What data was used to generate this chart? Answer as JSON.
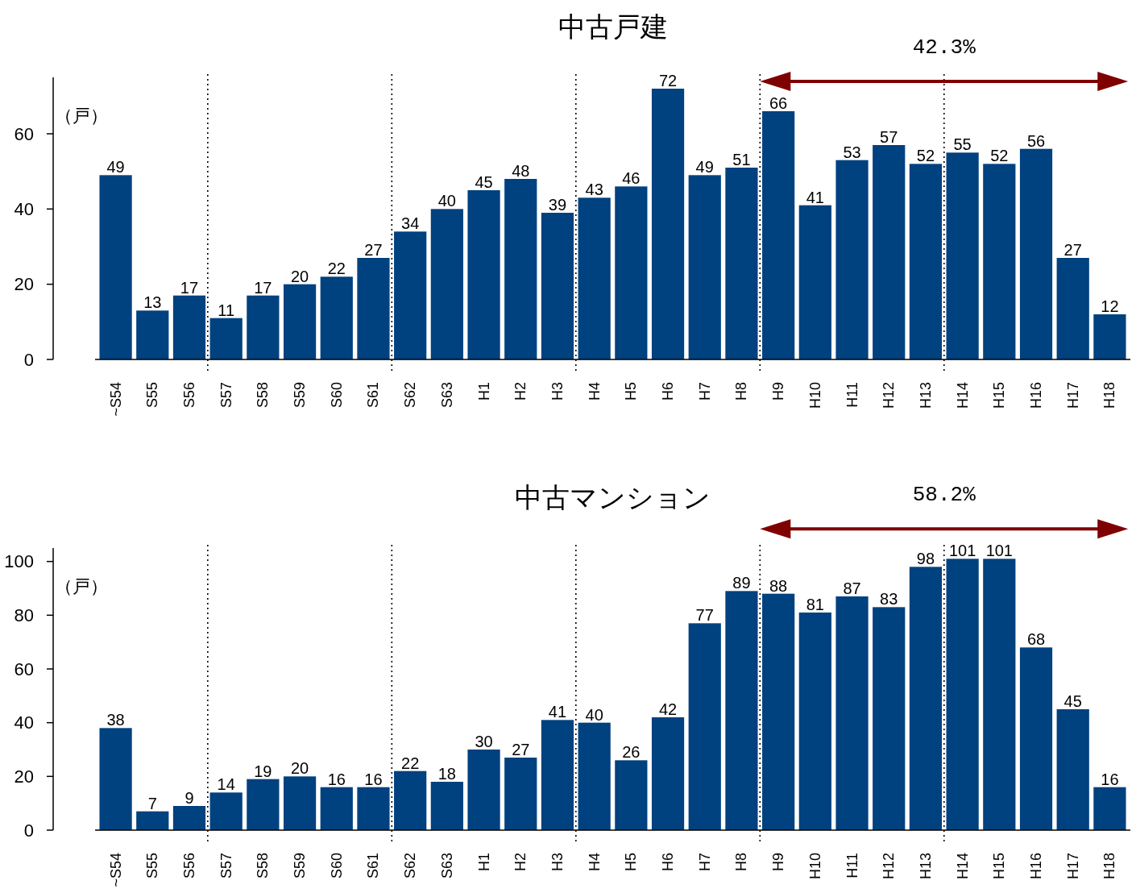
{
  "chart_data": [
    {
      "type": "bar",
      "title": "中古戸建",
      "ylabel": "（戸）",
      "categories": [
        "~S54",
        "S55",
        "S56",
        "S57",
        "S58",
        "S59",
        "S60",
        "S61",
        "S62",
        "S63",
        "H1",
        "H2",
        "H3",
        "H4",
        "H5",
        "H6",
        "H7",
        "H8",
        "H9",
        "H10",
        "H11",
        "H12",
        "H13",
        "H14",
        "H15",
        "H16",
        "H17",
        "H18"
      ],
      "values": [
        49,
        13,
        17,
        11,
        17,
        20,
        22,
        27,
        34,
        40,
        45,
        48,
        39,
        43,
        46,
        72,
        49,
        51,
        66,
        41,
        53,
        57,
        52,
        55,
        52,
        56,
        27,
        12
      ],
      "color": "#00417f",
      "ylim": [
        0,
        75
      ],
      "yticks": [
        0,
        20,
        40,
        60
      ],
      "data_labels": true,
      "annotations": [
        "42.3%"
      ]
    },
    {
      "type": "bar",
      "title": "中古マンション",
      "ylabel": "（戸）",
      "categories": [
        "~S54",
        "S55",
        "S56",
        "S57",
        "S58",
        "S59",
        "S60",
        "S61",
        "S62",
        "S63",
        "H1",
        "H2",
        "H3",
        "H4",
        "H5",
        "H6",
        "H7",
        "H8",
        "H9",
        "H10",
        "H11",
        "H12",
        "H13",
        "H14",
        "H15",
        "H16",
        "H17",
        "H18"
      ],
      "values": [
        38,
        7,
        9,
        14,
        19,
        20,
        16,
        16,
        22,
        18,
        30,
        27,
        41,
        40,
        26,
        42,
        77,
        89,
        88,
        81,
        87,
        83,
        98,
        101,
        101,
        68,
        45,
        16
      ],
      "color": "#00417f",
      "ylim": [
        0,
        105
      ],
      "yticks": [
        0,
        20,
        40,
        60,
        80,
        100
      ],
      "data_labels": true,
      "annotations": [
        "58.2%"
      ]
    }
  ]
}
